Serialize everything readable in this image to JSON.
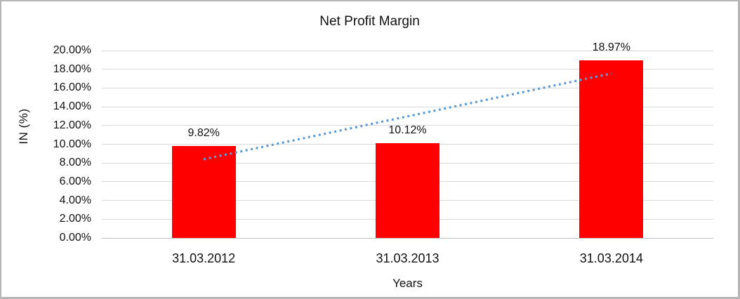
{
  "chart_data": {
    "type": "bar",
    "title": "Net Profit Margin",
    "xlabel": "Years",
    "ylabel": "IN (%)",
    "categories": [
      "31.03.2012",
      "31.03.2013",
      "31.03.2014"
    ],
    "values": [
      9.82,
      10.12,
      18.97
    ],
    "data_labels": [
      "9.82%",
      "10.12%",
      "18.97%"
    ],
    "ylim": [
      0,
      20
    ],
    "y_ticks": [
      "0.00%",
      "2.00%",
      "4.00%",
      "6.00%",
      "8.00%",
      "10.00%",
      "12.00%",
      "14.00%",
      "16.00%",
      "18.00%",
      "20.00%"
    ],
    "grid": true,
    "legend_position": "none",
    "bar_color": "#ff0000",
    "gridline_color": "#d9d9d9",
    "trendline": {
      "type": "linear",
      "style": "dotted",
      "color": "#5b9bd5",
      "start_value": 8.4,
      "end_value": 17.55
    }
  }
}
